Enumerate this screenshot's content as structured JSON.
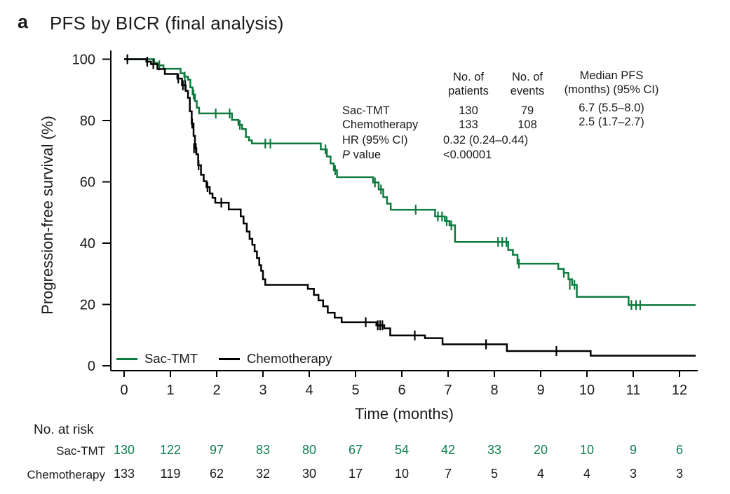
{
  "panel": {
    "label": "a",
    "title": "PFS by BICR (final analysis)"
  },
  "stats": {
    "col_headers": {
      "patients_line1": "No. of",
      "patients_line2": "patients",
      "events_line1": "No. of",
      "events_line2": "events",
      "median_line1": "Median PFS",
      "median_line2": "(months) (95% CI)"
    },
    "rows": [
      {
        "label": "Sac-TMT",
        "patients": "130",
        "events": "79",
        "median": "6.7 (5.5–8.0)"
      },
      {
        "label": "Chemotherapy",
        "patients": "133",
        "events": "108",
        "median": "2.5 (1.7–2.7)"
      }
    ],
    "hr_label": "HR (95% CI)",
    "hr_value": "0.32 (0.24–0.44)",
    "p_label_italic": "P",
    "p_label_rest": " value",
    "p_value": "<0.00001"
  },
  "legend": {
    "items": [
      {
        "label": "Sac-TMT",
        "color": "#0d7a3e"
      },
      {
        "label": "Chemotherapy",
        "color": "#000000"
      }
    ]
  },
  "y_axis": {
    "label": "Progression-free survival (%)",
    "ticks": [
      0,
      20,
      40,
      60,
      80,
      100
    ]
  },
  "x_axis": {
    "label": "Time (months)",
    "ticks": [
      0,
      1,
      2,
      3,
      4,
      5,
      6,
      7,
      8,
      9,
      10,
      11,
      12
    ]
  },
  "risk_table": {
    "title": "No. at risk",
    "rows": [
      {
        "label": "Sac-TMT",
        "color": "#108050",
        "values": [
          130,
          122,
          97,
          83,
          80,
          67,
          54,
          42,
          33,
          20,
          10,
          9,
          6
        ]
      },
      {
        "label": "Chemotherapy",
        "color": "#1a1a1a",
        "values": [
          133,
          119,
          62,
          32,
          30,
          17,
          10,
          7,
          5,
          4,
          4,
          3,
          3
        ]
      }
    ]
  },
  "chart_data": {
    "type": "line",
    "subtype": "kaplan-meier-step",
    "title": "PFS by BICR (final analysis)",
    "xlabel": "Time (months)",
    "ylabel": "Progression-free survival (%)",
    "xlim": [
      0,
      12.4
    ],
    "ylim": [
      0,
      100
    ],
    "grid": false,
    "legend_position": "inside-bottom-left",
    "x_end": 12.35,
    "series": [
      {
        "name": "Sac-TMT",
        "color": "#0d7a3e",
        "n_patients": 130,
        "n_events": 79,
        "median_pfs": "6.7 (5.5–8.0)",
        "steps": [
          [
            0,
            100
          ],
          [
            0.65,
            98.8
          ],
          [
            0.72,
            98.0
          ],
          [
            0.85,
            96.9
          ],
          [
            1.22,
            95.4
          ],
          [
            1.3,
            94.3
          ],
          [
            1.38,
            93.3
          ],
          [
            1.43,
            90.8
          ],
          [
            1.48,
            88.5
          ],
          [
            1.53,
            86.3
          ],
          [
            1.57,
            84.2
          ],
          [
            1.62,
            82.3
          ],
          [
            2.33,
            80.2
          ],
          [
            2.47,
            78.6
          ],
          [
            2.55,
            77.2
          ],
          [
            2.63,
            74.6
          ],
          [
            2.7,
            73.5
          ],
          [
            2.76,
            72.5
          ],
          [
            4.25,
            70.6
          ],
          [
            4.38,
            68.3
          ],
          [
            4.46,
            66.0
          ],
          [
            4.53,
            63.8
          ],
          [
            4.6,
            61.5
          ],
          [
            5.38,
            59.8
          ],
          [
            5.5,
            57.5
          ],
          [
            5.6,
            55.0
          ],
          [
            5.68,
            52.9
          ],
          [
            5.76,
            50.9
          ],
          [
            6.72,
            48.7
          ],
          [
            6.93,
            47.2
          ],
          [
            7.03,
            45.8
          ],
          [
            7.15,
            40.4
          ],
          [
            8.3,
            37.8
          ],
          [
            8.4,
            36.2
          ],
          [
            8.5,
            33.3
          ],
          [
            9.38,
            31.6
          ],
          [
            9.5,
            30.3
          ],
          [
            9.6,
            28.2
          ],
          [
            9.68,
            26.4
          ],
          [
            9.78,
            22.5
          ],
          [
            10.9,
            19.8
          ]
        ],
        "censors": [
          [
            0.76,
            98.0
          ],
          [
            1.31,
            94.3
          ],
          [
            1.5,
            88.5
          ],
          [
            1.98,
            82.3
          ],
          [
            2.28,
            82.3
          ],
          [
            2.5,
            78.6
          ],
          [
            3.05,
            72.5
          ],
          [
            3.16,
            72.5
          ],
          [
            4.35,
            70.6
          ],
          [
            4.56,
            63.8
          ],
          [
            5.42,
            59.8
          ],
          [
            5.55,
            57.5
          ],
          [
            6.3,
            50.9
          ],
          [
            6.78,
            48.7
          ],
          [
            6.87,
            48.7
          ],
          [
            6.97,
            47.2
          ],
          [
            7.07,
            45.8
          ],
          [
            8.08,
            40.4
          ],
          [
            8.17,
            40.4
          ],
          [
            8.26,
            40.4
          ],
          [
            8.53,
            33.3
          ],
          [
            9.5,
            30.3
          ],
          [
            9.63,
            26.4
          ],
          [
            9.73,
            26.4
          ],
          [
            10.96,
            19.8
          ],
          [
            11.06,
            19.8
          ],
          [
            11.15,
            19.8
          ]
        ]
      },
      {
        "name": "Chemotherapy",
        "color": "#000000",
        "n_patients": 133,
        "n_events": 108,
        "median_pfs": "2.5 (1.7–2.7)",
        "steps": [
          [
            0,
            100
          ],
          [
            0.48,
            99.2
          ],
          [
            0.58,
            98.4
          ],
          [
            0.72,
            96.8
          ],
          [
            0.88,
            95.2
          ],
          [
            1.15,
            93.7
          ],
          [
            1.25,
            91.5
          ],
          [
            1.33,
            89.7
          ],
          [
            1.38,
            87.4
          ],
          [
            1.42,
            83.0
          ],
          [
            1.46,
            79.0
          ],
          [
            1.5,
            75.0
          ],
          [
            1.53,
            71.0
          ],
          [
            1.56,
            69.0
          ],
          [
            1.6,
            65.4
          ],
          [
            1.66,
            62.3
          ],
          [
            1.72,
            60.2
          ],
          [
            1.78,
            58.3
          ],
          [
            1.85,
            56.2
          ],
          [
            1.91,
            54.8
          ],
          [
            1.97,
            53.2
          ],
          [
            2.26,
            51.0
          ],
          [
            2.52,
            48.7
          ],
          [
            2.58,
            46.4
          ],
          [
            2.65,
            43.8
          ],
          [
            2.71,
            41.4
          ],
          [
            2.77,
            39.5
          ],
          [
            2.82,
            37.3
          ],
          [
            2.87,
            35.1
          ],
          [
            2.92,
            32.8
          ],
          [
            2.96,
            31.0
          ],
          [
            3.0,
            28.2
          ],
          [
            3.05,
            26.4
          ],
          [
            3.97,
            25.1
          ],
          [
            4.1,
            23.1
          ],
          [
            4.2,
            21.3
          ],
          [
            4.3,
            19.4
          ],
          [
            4.4,
            17.3
          ],
          [
            4.55,
            15.7
          ],
          [
            4.7,
            14.2
          ],
          [
            5.45,
            13.2
          ],
          [
            5.62,
            12.2
          ],
          [
            5.75,
            9.9
          ],
          [
            6.5,
            9.0
          ],
          [
            6.88,
            7.0
          ],
          [
            8.27,
            4.8
          ],
          [
            10.08,
            3.3
          ]
        ],
        "censors": [
          [
            0.07,
            100
          ],
          [
            0.5,
            99.2
          ],
          [
            0.63,
            98.4
          ],
          [
            1.17,
            93.7
          ],
          [
            1.27,
            91.5
          ],
          [
            1.32,
            91.5
          ],
          [
            1.47,
            79.0
          ],
          [
            1.51,
            71.0
          ],
          [
            1.55,
            71.0
          ],
          [
            1.61,
            65.4
          ],
          [
            1.8,
            58.3
          ],
          [
            2.1,
            53.2
          ],
          [
            5.22,
            14.2
          ],
          [
            5.48,
            13.2
          ],
          [
            5.53,
            13.2
          ],
          [
            5.58,
            13.2
          ],
          [
            6.28,
            9.9
          ],
          [
            7.82,
            7.0
          ],
          [
            9.34,
            4.8
          ]
        ]
      }
    ],
    "hr": "0.32 (0.24–0.44)",
    "p_value": "<0.00001"
  }
}
